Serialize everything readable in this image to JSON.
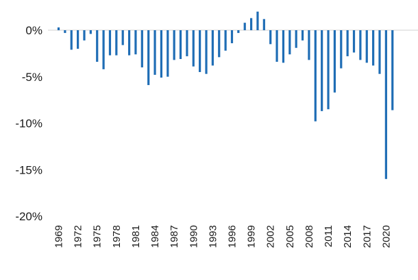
{
  "chart_data": {
    "type": "bar",
    "title": "",
    "xlabel": "",
    "ylabel": "",
    "ylim": [
      -20,
      2.5
    ],
    "y_ticks": [
      0,
      -5,
      -10,
      -15,
      -20
    ],
    "y_tick_labels": [
      "0%",
      "-5%",
      "-10%",
      "-15%",
      "-20%"
    ],
    "x_tick_labels": [
      "1969",
      "1972",
      "1975",
      "1978",
      "1981",
      "1984",
      "1987",
      "1990",
      "1993",
      "1996",
      "1999",
      "2002",
      "2005",
      "2008",
      "2011",
      "2014",
      "2017",
      "2020"
    ],
    "categories": [
      "1969",
      "1970",
      "1971",
      "1972",
      "1973",
      "1974",
      "1975",
      "1976",
      "1977",
      "1978",
      "1979",
      "1980",
      "1981",
      "1982",
      "1983",
      "1984",
      "1985",
      "1986",
      "1987",
      "1988",
      "1989",
      "1990",
      "1991",
      "1992",
      "1993",
      "1994",
      "1995",
      "1996",
      "1997",
      "1998",
      "1999",
      "2000",
      "2001",
      "2002",
      "2003",
      "2004",
      "2005",
      "2006",
      "2007",
      "2008",
      "2009",
      "2010",
      "2011",
      "2012",
      "2013",
      "2014",
      "2015",
      "2016",
      "2017",
      "2018",
      "2019",
      "2020",
      "2021"
    ],
    "values": [
      0.3,
      -0.3,
      -2.1,
      -2.0,
      -1.1,
      -0.4,
      -3.4,
      -4.2,
      -2.7,
      -2.7,
      -1.6,
      -2.7,
      -2.6,
      -4.0,
      -5.9,
      -4.8,
      -5.1,
      -5.0,
      -3.2,
      -3.1,
      -2.8,
      -3.9,
      -4.5,
      -4.7,
      -3.8,
      -2.9,
      -2.2,
      -1.4,
      -0.3,
      0.8,
      1.3,
      2.0,
      1.2,
      -1.5,
      -3.4,
      -3.5,
      -2.6,
      -1.9,
      -1.1,
      -3.2,
      -9.8,
      -8.7,
      -8.5,
      -6.7,
      -4.1,
      -2.8,
      -2.4,
      -3.2,
      -3.5,
      -3.8,
      -4.7,
      -16.0,
      -8.6
    ],
    "grid": false,
    "legend": "none",
    "bar_color": "#1f6db5",
    "zero_line_color": "#d0d0d0"
  }
}
